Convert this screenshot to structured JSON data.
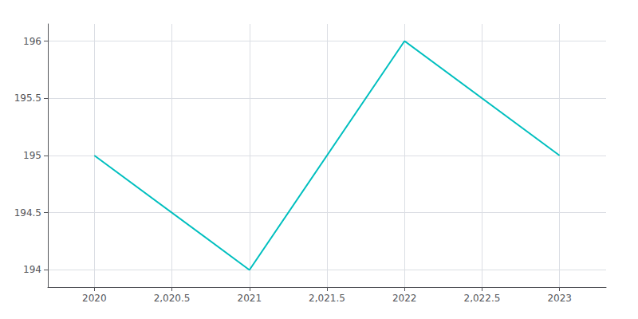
{
  "chart_data": {
    "type": "line",
    "x": [
      2020,
      2021,
      2022,
      2023
    ],
    "values": [
      195,
      194,
      196,
      195
    ],
    "color": "#00BFBF",
    "xlim": [
      2019.7,
      2023.3
    ],
    "ylim": [
      193.85,
      196.15
    ],
    "xticks": [
      2020,
      {
        "value": 2020.5,
        "label": "2,020.5"
      },
      2021,
      {
        "value": 2021.5,
        "label": "2,021.5"
      },
      2022,
      {
        "value": 2022.5,
        "label": "2,022.5"
      },
      2023
    ],
    "yticks": [
      194,
      194.5,
      195,
      195.5,
      196
    ],
    "grid": true
  }
}
